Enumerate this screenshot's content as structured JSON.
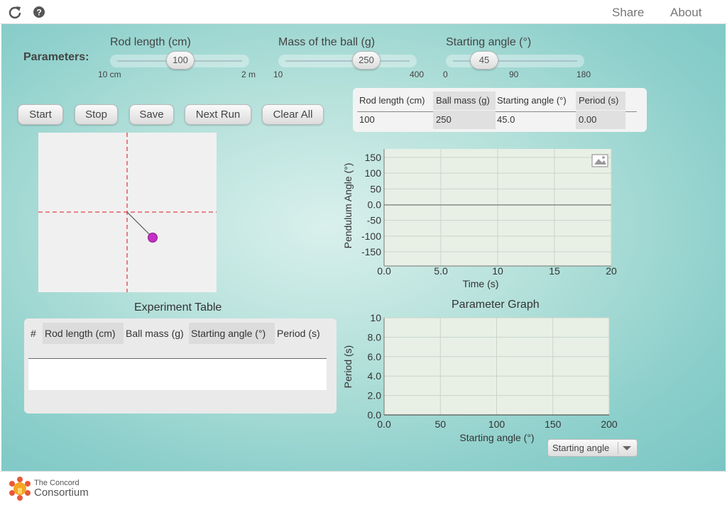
{
  "topbar": {
    "share_label": "Share",
    "about_label": "About",
    "reload_icon": "reload-icon",
    "help_icon": "help-icon"
  },
  "parameters": {
    "label": "Parameters:",
    "rod_length": {
      "title": "Rod length (cm)",
      "value": "100",
      "min_label": "10 cm",
      "max_label": "2 m"
    },
    "ball_mass": {
      "title": "Mass of the ball (g)",
      "value": "250",
      "min_label": "10",
      "max_label": "400"
    },
    "starting_angle": {
      "title": "Starting angle (°)",
      "value": "45",
      "min_label": "0",
      "mid_label": "90",
      "max_label": "180"
    }
  },
  "buttons": {
    "start": "Start",
    "stop": "Stop",
    "save": "Save",
    "next_run": "Next Run",
    "clear_all": "Clear All"
  },
  "current_table": {
    "headers": [
      "Rod length (cm)",
      "Ball mass (g)",
      "Starting angle (°)",
      "Period (s)"
    ],
    "row": [
      "100",
      "250",
      "45.0",
      "0.00"
    ]
  },
  "experiment_table": {
    "title": "Experiment Table",
    "headers": [
      "#",
      "Rod length (cm)",
      "Ball mass (g)",
      "Starting angle (°)",
      "Period (s)"
    ]
  },
  "angle_graph": {
    "ylabel": "Pendulum Angle (°)",
    "xlabel": "Time (s)",
    "yticks": [
      "150",
      "100",
      "50",
      "0.0",
      "-50",
      "-100",
      "-150"
    ],
    "xticks": [
      "0.0",
      "5.0",
      "10",
      "15",
      "20"
    ],
    "image_icon": "image-icon"
  },
  "parameter_graph": {
    "title": "Parameter Graph",
    "ylabel": "Period (s)",
    "xlabel": "Starting angle (°)",
    "yticks": [
      "10",
      "8.0",
      "6.0",
      "4.0",
      "2.0",
      "0.0"
    ],
    "xticks": [
      "0.0",
      "50",
      "100",
      "150",
      "200"
    ],
    "dropdown_value": "Starting angle"
  },
  "footer": {
    "logo_line1": "The Concord",
    "logo_line2": "Consortium"
  },
  "colors": {
    "ball": "#c62ec6",
    "dashed": "#e0424a",
    "graph_bg": "#e8f0e6"
  }
}
